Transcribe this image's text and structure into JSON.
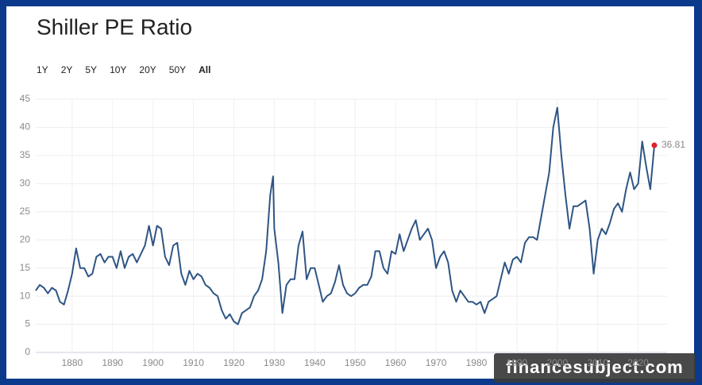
{
  "chart_data": {
    "type": "line",
    "title": "Shiller PE Ratio",
    "range_buttons": [
      "1Y",
      "2Y",
      "5Y",
      "10Y",
      "20Y",
      "50Y",
      "All"
    ],
    "x": [
      1871,
      1872,
      1873,
      1874,
      1875,
      1876,
      1877,
      1878,
      1879,
      1880,
      1881,
      1882,
      1883,
      1884,
      1885,
      1886,
      1887,
      1888,
      1889,
      1890,
      1891,
      1892,
      1893,
      1894,
      1895,
      1896,
      1897,
      1898,
      1899,
      1900,
      1901,
      1902,
      1903,
      1904,
      1905,
      1906,
      1907,
      1908,
      1909,
      1910,
      1911,
      1912,
      1913,
      1914,
      1915,
      1916,
      1917,
      1918,
      1919,
      1920,
      1921,
      1922,
      1923,
      1924,
      1925,
      1926,
      1927,
      1928,
      1929,
      1929.7,
      1930,
      1931,
      1932,
      1933,
      1934,
      1935,
      1936,
      1937,
      1938,
      1939,
      1940,
      1941,
      1942,
      1943,
      1944,
      1945,
      1946,
      1947,
      1948,
      1949,
      1950,
      1951,
      1952,
      1953,
      1954,
      1955,
      1956,
      1957,
      1958,
      1959,
      1960,
      1961,
      1962,
      1963,
      1964,
      1965,
      1966,
      1967,
      1968,
      1969,
      1970,
      1971,
      1972,
      1973,
      1974,
      1975,
      1976,
      1977,
      1978,
      1979,
      1980,
      1981,
      1982,
      1983,
      1984,
      1985,
      1986,
      1987,
      1988,
      1989,
      1990,
      1991,
      1992,
      1993,
      1994,
      1995,
      1996,
      1997,
      1998,
      1999,
      2000,
      2001,
      2002,
      2003,
      2004,
      2005,
      2006,
      2007,
      2008,
      2009,
      2010,
      2011,
      2012,
      2013,
      2014,
      2015,
      2016,
      2017,
      2018,
      2019,
      2020,
      2021,
      2022,
      2023,
      2024
    ],
    "series": [
      {
        "name": "Shiller PE Ratio",
        "color": "#2e5584",
        "values": [
          11,
          12,
          11.5,
          10.5,
          11.5,
          11,
          9,
          8.5,
          11,
          14,
          18.5,
          15,
          15,
          13.5,
          14,
          17,
          17.5,
          16,
          17,
          17,
          15,
          18,
          15,
          17,
          17.5,
          16,
          17.5,
          19,
          22.5,
          19,
          22.5,
          22,
          17,
          15.5,
          19,
          19.5,
          14,
          12,
          14.5,
          13,
          14,
          13.5,
          12,
          11.5,
          10.5,
          10,
          7.5,
          6,
          6.8,
          5.5,
          5,
          7,
          7.5,
          8,
          10,
          11,
          13,
          18,
          28,
          31.3,
          22,
          16,
          7,
          12,
          13,
          13,
          19,
          21.5,
          13,
          15,
          15,
          12,
          9,
          10,
          10.5,
          12.5,
          15.5,
          12,
          10.5,
          10,
          10.5,
          11.5,
          12,
          12,
          13.5,
          18,
          18,
          15,
          14,
          18,
          17.5,
          21,
          18,
          20,
          22,
          23.5,
          20,
          21,
          22,
          20,
          15,
          17,
          18,
          16,
          11,
          9,
          11,
          10,
          9,
          9,
          8.5,
          9,
          7,
          9,
          9.5,
          10,
          13,
          16,
          14,
          16.5,
          17,
          16,
          19.5,
          20.5,
          20.5,
          20,
          24,
          28,
          32,
          40,
          43.5,
          35,
          28,
          22,
          26,
          26,
          26.5,
          27,
          22,
          14,
          20,
          22,
          21,
          23,
          25.5,
          26.5,
          25,
          29,
          32,
          29,
          30,
          37.5,
          33,
          29,
          36.81
        ]
      }
    ],
    "xlim": [
      1871,
      2024
    ],
    "ylim": [
      0,
      45
    ],
    "xticks": [
      1880,
      1890,
      1900,
      1910,
      1920,
      1930,
      1940,
      1950,
      1960,
      1970,
      1980,
      1990,
      2000,
      2010,
      2020
    ],
    "yticks": [
      0,
      5,
      10,
      15,
      20,
      25,
      30,
      35,
      40,
      45
    ],
    "grid": true,
    "last_point_color": "#e0202a"
  },
  "watermark": "financesubject.com"
}
